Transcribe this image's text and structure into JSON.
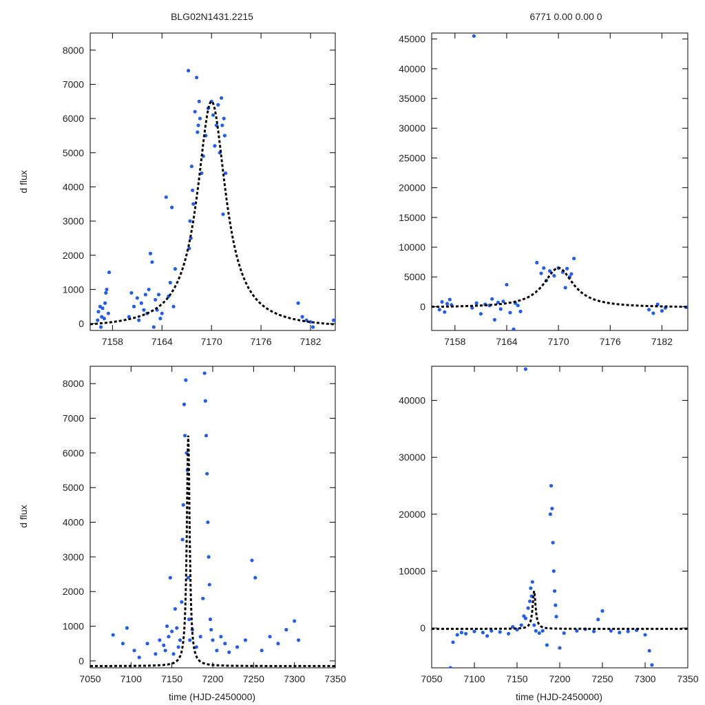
{
  "figure": {
    "top_left_title": "BLG02N1431.2215",
    "top_right_title": "6771   0.00   0.00   0",
    "ylabel_top": "d flux",
    "ylabel_bottom": "d flux",
    "xlabel_bottom_left": "time (HJD-2450000)",
    "xlabel_bottom_right": "time (HJD-2450000)",
    "point_color": "#1f5ef0",
    "model_color": "#000000"
  },
  "chart_data": [
    {
      "id": "zoom-linear",
      "type": "scatter",
      "title": "BLG02N1431.2215",
      "xlabel": "",
      "ylabel": "d flux",
      "xlim": [
        7155.3,
        7185
      ],
      "ylim": [
        -200,
        8500
      ],
      "xticks": [
        7158,
        7164,
        7170,
        7176,
        7182
      ],
      "yticks": [
        0,
        1000,
        2000,
        3000,
        4000,
        5000,
        6000,
        7000,
        8000
      ],
      "model": {
        "t0": 7170,
        "peak": 6500,
        "width": 2.1,
        "baseline": -150
      },
      "series": [
        {
          "name": "data",
          "x": [
            7156.2,
            7156.3,
            7156.5,
            7156.6,
            7156.7,
            7156.8,
            7157.0,
            7157.1,
            7157.2,
            7157.3,
            7157.5,
            7157.6,
            7160.0,
            7160.3,
            7160.6,
            7161.0,
            7161.2,
            7161.5,
            7161.8,
            7162.0,
            7162.2,
            7162.4,
            7162.6,
            7162.8,
            7163.0,
            7163.2,
            7163.4,
            7163.6,
            7163.8,
            7164.0,
            7164.5,
            7164.8,
            7165.0,
            7165.2,
            7165.4,
            7165.6,
            7167.2,
            7167.3,
            7167.4,
            7167.5,
            7167.6,
            7167.7,
            7167.8,
            7168.0,
            7168.2,
            7168.3,
            7168.4,
            7168.5,
            7168.6,
            7168.8,
            7169.0,
            7169.3,
            7169.6,
            7170.0,
            7170.2,
            7170.4,
            7170.6,
            7170.8,
            7171.0,
            7171.2,
            7171.3,
            7171.4,
            7171.5,
            7171.6,
            7171.7,
            7180.5,
            7181.0,
            7181.5,
            7182.0,
            7182.3,
            7184.8
          ],
          "y": [
            100,
            350,
            500,
            -100,
            200,
            450,
            150,
            600,
            900,
            1000,
            300,
            1500,
            200,
            900,
            500,
            750,
            100,
            600,
            400,
            850,
            300,
            1000,
            2050,
            1800,
            -100,
            700,
            400,
            850,
            150,
            300,
            3700,
            800,
            1200,
            3400,
            500,
            1600,
            7400,
            2200,
            3000,
            2500,
            4600,
            3900,
            3500,
            6200,
            7200,
            5600,
            5800,
            6500,
            6000,
            4400,
            4900,
            5500,
            6300,
            6500,
            6100,
            5200,
            5800,
            6400,
            5000,
            6600,
            5800,
            3200,
            6000,
            5500,
            4400,
            600,
            200,
            100,
            50,
            -100,
            100
          ]
        }
      ]
    },
    {
      "id": "zoom-wide",
      "type": "scatter",
      "title": "6771   0.00   0.00   0",
      "xlabel": "",
      "ylabel": "",
      "xlim": [
        7155.3,
        7185
      ],
      "ylim": [
        -4000,
        46000
      ],
      "xticks": [
        7158,
        7164,
        7170,
        7176,
        7182
      ],
      "yticks": [
        0,
        5000,
        10000,
        15000,
        20000,
        25000,
        30000,
        35000,
        40000,
        45000
      ],
      "model": {
        "t0": 7170,
        "peak": 6500,
        "width": 2.1,
        "baseline": -150
      },
      "series": [
        {
          "name": "data",
          "x": [
            7156.2,
            7156.5,
            7156.8,
            7157.1,
            7157.4,
            7157.6,
            7160.0,
            7160.5,
            7161.0,
            7161.5,
            7162.0,
            7162.3,
            7162.6,
            7163.0,
            7163.3,
            7163.6,
            7164.0,
            7164.4,
            7164.8,
            7165.0,
            7165.3,
            7165.6,
            7167.5,
            7168.0,
            7168.3,
            7168.6,
            7169.0,
            7169.5,
            7170.0,
            7170.5,
            7170.8,
            7171.0,
            7171.3,
            7171.5,
            7171.8,
            7180.5,
            7181.0,
            7181.5,
            7182.0,
            7182.4,
            7184.8,
            7160.2
          ],
          "y": [
            -500,
            800,
            -900,
            500,
            1200,
            300,
            -200,
            600,
            -1200,
            400,
            200,
            1300,
            -2200,
            700,
            -400,
            900,
            3700,
            -1000,
            -3800,
            600,
            200,
            -800,
            7400,
            5600,
            6500,
            4400,
            6000,
            5200,
            6500,
            5800,
            3200,
            6400,
            5000,
            5500,
            8100,
            -500,
            -1100,
            400,
            -700,
            -200,
            -100,
            45500
          ]
        }
      ]
    },
    {
      "id": "full-linear",
      "type": "scatter",
      "title": "",
      "xlabel": "time (HJD-2450000)",
      "ylabel": "d flux",
      "xlim": [
        7050,
        7350
      ],
      "ylim": [
        -200,
        8500
      ],
      "xticks": [
        7050,
        7100,
        7150,
        7200,
        7250,
        7300,
        7350
      ],
      "yticks": [
        0,
        1000,
        2000,
        3000,
        4000,
        5000,
        6000,
        7000,
        8000
      ],
      "model": {
        "t0": 7170,
        "peak": 6500,
        "width": 2.1,
        "baseline": -150
      },
      "series": [
        {
          "name": "data",
          "x": [
            7078,
            7090,
            7095,
            7104,
            7110,
            7120,
            7130,
            7135,
            7140,
            7142,
            7144,
            7146,
            7148,
            7150,
            7152,
            7154,
            7156,
            7158,
            7160,
            7162,
            7163,
            7164,
            7165,
            7166,
            7167,
            7168,
            7169,
            7170,
            7171,
            7172,
            7175,
            7180,
            7185,
            7188,
            7190,
            7191,
            7192,
            7193,
            7194,
            7195,
            7196,
            7197,
            7198,
            7200,
            7205,
            7210,
            7215,
            7220,
            7230,
            7240,
            7248,
            7252,
            7260,
            7270,
            7280,
            7290,
            7300,
            7305
          ],
          "y": [
            750,
            500,
            950,
            300,
            100,
            500,
            200,
            600,
            450,
            300,
            1000,
            700,
            2400,
            850,
            200,
            1500,
            950,
            400,
            600,
            1700,
            3500,
            4500,
            7400,
            6500,
            8100,
            6000,
            5500,
            2400,
            1200,
            600,
            900,
            400,
            700,
            1800,
            8300,
            7500,
            6500,
            5400,
            4000,
            3000,
            2200,
            1200,
            900,
            600,
            300,
            700,
            500,
            250,
            400,
            600,
            2900,
            2400,
            300,
            700,
            500,
            900,
            1150,
            600
          ]
        }
      ]
    },
    {
      "id": "full-wide",
      "type": "scatter",
      "title": "",
      "xlabel": "time (HJD-2450000)",
      "ylabel": "",
      "xlim": [
        7050,
        7350
      ],
      "ylim": [
        -7000,
        46000
      ],
      "xticks": [
        7050,
        7100,
        7150,
        7200,
        7250,
        7300,
        7350
      ],
      "yticks": [
        0,
        10000,
        20000,
        30000,
        40000
      ],
      "model": {
        "t0": 7170,
        "peak": 6500,
        "width": 2.1,
        "baseline": -150
      },
      "series": [
        {
          "name": "data",
          "x": [
            7072,
            7075,
            7080,
            7085,
            7090,
            7100,
            7110,
            7115,
            7120,
            7130,
            7140,
            7145,
            7150,
            7155,
            7158,
            7160,
            7163,
            7165,
            7166,
            7167,
            7168,
            7170,
            7172,
            7176,
            7180,
            7185,
            7189,
            7190,
            7191,
            7192,
            7193,
            7194,
            7195,
            7196,
            7200,
            7205,
            7210,
            7220,
            7230,
            7240,
            7245,
            7250,
            7260,
            7270,
            7280,
            7290,
            7300,
            7305,
            7308,
            7160
          ],
          "y": [
            -7000,
            -2500,
            -1200,
            -800,
            -1000,
            -600,
            -800,
            -1400,
            -500,
            -700,
            -1000,
            200,
            -300,
            500,
            2100,
            1700,
            3500,
            4700,
            7000,
            5600,
            8100,
            500,
            -500,
            -900,
            -500,
            -3000,
            20000,
            25000,
            21000,
            15000,
            10000,
            6500,
            4000,
            2000,
            -3500,
            -900,
            -7400,
            -500,
            -200,
            -600,
            1500,
            3000,
            -500,
            -800,
            -600,
            -400,
            -1200,
            -4000,
            -6500,
            45500
          ]
        }
      ]
    }
  ]
}
